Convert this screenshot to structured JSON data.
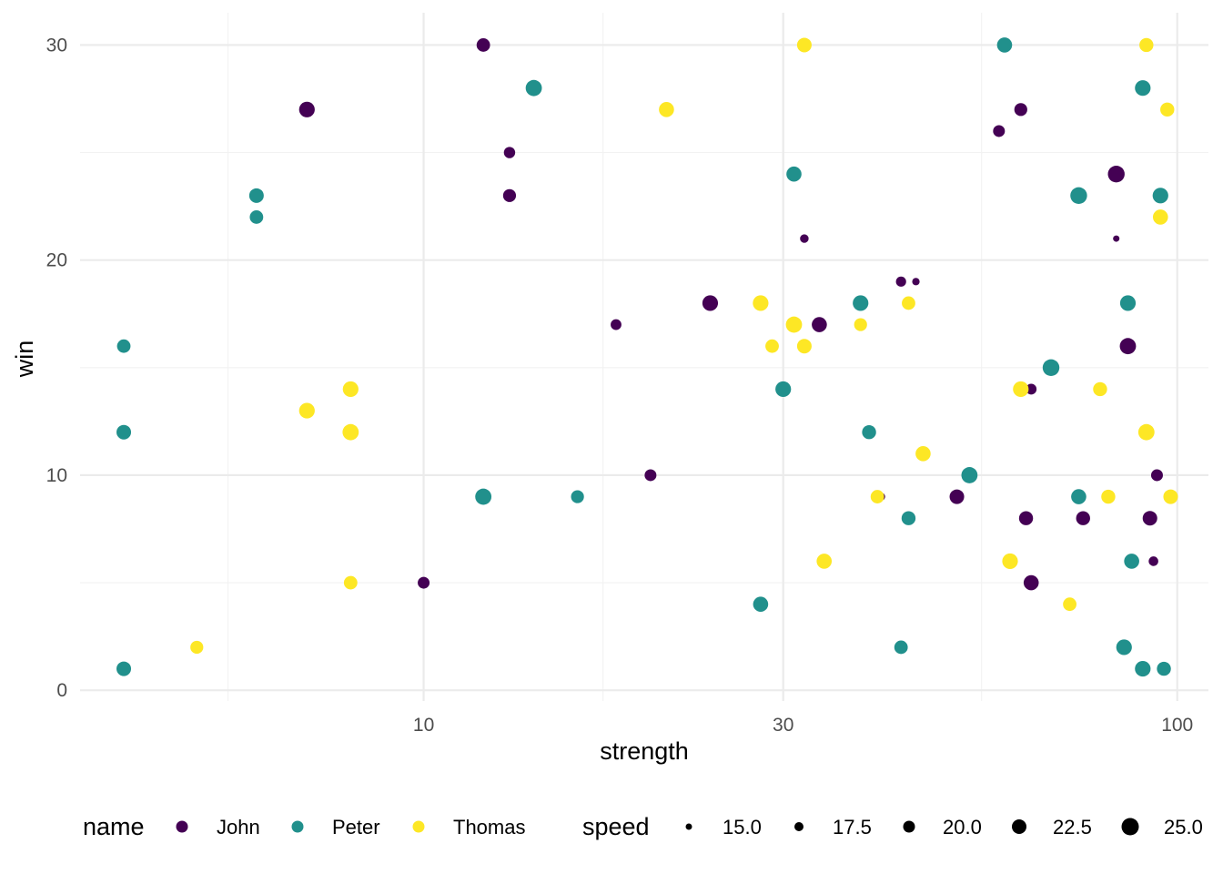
{
  "chart_data": {
    "type": "scatter",
    "xlabel": "strength",
    "ylabel": "win",
    "x_scale": "log10",
    "x_ticks": [
      10,
      30,
      100
    ],
    "x_tick_labels": [
      "10",
      "30",
      "100"
    ],
    "x_minor_ticks": [
      5.5,
      17.3,
      55
    ],
    "xlim": [
      3.5,
      110
    ],
    "y_ticks": [
      0,
      10,
      20,
      30
    ],
    "y_tick_labels": [
      "0",
      "10",
      "20",
      "30"
    ],
    "y_minor_ticks": [
      5,
      15,
      25
    ],
    "ylim": [
      -0.5,
      31.5
    ],
    "grid": true,
    "legend_position": "bottom",
    "colors": {
      "John": "#440154",
      "Peter": "#21908C",
      "Thomas": "#FDE725"
    },
    "color_legend": {
      "title": "name",
      "entries": [
        "John",
        "Peter",
        "Thomas"
      ]
    },
    "size_legend": {
      "title": "speed",
      "values": [
        15.0,
        17.5,
        20.0,
        22.5,
        25.0
      ],
      "labels": [
        "15.0",
        "17.5",
        "20.0",
        "22.5",
        "25.0"
      ]
    },
    "series": [
      {
        "name": "John",
        "points": [
          {
            "x": 12.0,
            "y": 30,
            "speed": 21.5
          },
          {
            "x": 7.0,
            "y": 27,
            "speed": 23.5
          },
          {
            "x": 13.0,
            "y": 25,
            "speed": 19.5
          },
          {
            "x": 13.0,
            "y": 23,
            "speed": 21.0
          },
          {
            "x": 32.0,
            "y": 21,
            "speed": 17.0
          },
          {
            "x": 18.0,
            "y": 17,
            "speed": 19.0
          },
          {
            "x": 24.0,
            "y": 18,
            "speed": 23.5
          },
          {
            "x": 33.5,
            "y": 17,
            "speed": 23.0
          },
          {
            "x": 20.0,
            "y": 10,
            "speed": 20.0
          },
          {
            "x": 10.0,
            "y": 5,
            "speed": 20.0
          },
          {
            "x": 43.0,
            "y": 19,
            "speed": 18.5
          },
          {
            "x": 45.0,
            "y": 19,
            "speed": 16.0
          },
          {
            "x": 40.5,
            "y": 9,
            "speed": 16.0
          },
          {
            "x": 51.0,
            "y": 9,
            "speed": 22.5
          },
          {
            "x": 58.0,
            "y": 26,
            "speed": 20.0
          },
          {
            "x": 62.0,
            "y": 27,
            "speed": 21.0
          },
          {
            "x": 64.0,
            "y": 14,
            "speed": 19.0
          },
          {
            "x": 63.0,
            "y": 8,
            "speed": 22.0
          },
          {
            "x": 64.0,
            "y": 5,
            "speed": 23.0
          },
          {
            "x": 75.0,
            "y": 8,
            "speed": 22.0
          },
          {
            "x": 83.0,
            "y": 24,
            "speed": 24.5
          },
          {
            "x": 83.0,
            "y": 21,
            "speed": 15.0
          },
          {
            "x": 86.0,
            "y": 16,
            "speed": 24.0
          },
          {
            "x": 94.0,
            "y": 10,
            "speed": 20.0
          },
          {
            "x": 93.0,
            "y": 6,
            "speed": 18.0
          },
          {
            "x": 92.0,
            "y": 8,
            "speed": 22.5
          }
        ]
      },
      {
        "name": "Peter",
        "points": [
          {
            "x": 4.0,
            "y": 16,
            "speed": 21.5
          },
          {
            "x": 4.0,
            "y": 12,
            "speed": 22.5
          },
          {
            "x": 4.0,
            "y": 1,
            "speed": 22.5
          },
          {
            "x": 6.0,
            "y": 23,
            "speed": 22.5
          },
          {
            "x": 6.0,
            "y": 22,
            "speed": 21.5
          },
          {
            "x": 14.0,
            "y": 28,
            "speed": 24.0
          },
          {
            "x": 12.0,
            "y": 9,
            "speed": 24.0
          },
          {
            "x": 16.0,
            "y": 9,
            "speed": 21.0
          },
          {
            "x": 28.0,
            "y": 4,
            "speed": 23.0
          },
          {
            "x": 30.0,
            "y": 14,
            "speed": 23.5
          },
          {
            "x": 31.0,
            "y": 24,
            "speed": 23.0
          },
          {
            "x": 38.0,
            "y": 18,
            "speed": 23.5
          },
          {
            "x": 39.0,
            "y": 12,
            "speed": 22.0
          },
          {
            "x": 44.0,
            "y": 8,
            "speed": 22.0
          },
          {
            "x": 43.0,
            "y": 2,
            "speed": 21.5
          },
          {
            "x": 53.0,
            "y": 10,
            "speed": 24.0
          },
          {
            "x": 59.0,
            "y": 30,
            "speed": 23.0
          },
          {
            "x": 68.0,
            "y": 15,
            "speed": 24.5
          },
          {
            "x": 74.0,
            "y": 23,
            "speed": 24.5
          },
          {
            "x": 74.0,
            "y": 9,
            "speed": 23.0
          },
          {
            "x": 86.0,
            "y": 18,
            "speed": 23.5
          },
          {
            "x": 87.0,
            "y": 6,
            "speed": 23.0
          },
          {
            "x": 85.0,
            "y": 2,
            "speed": 23.5
          },
          {
            "x": 90.0,
            "y": 28,
            "speed": 23.5
          },
          {
            "x": 90.0,
            "y": 1,
            "speed": 23.5
          },
          {
            "x": 95.0,
            "y": 23,
            "speed": 23.5
          },
          {
            "x": 96.0,
            "y": 1,
            "speed": 22.0
          }
        ]
      },
      {
        "name": "Thomas",
        "points": [
          {
            "x": 5.0,
            "y": 2,
            "speed": 21.0
          },
          {
            "x": 7.0,
            "y": 13,
            "speed": 23.5
          },
          {
            "x": 8.0,
            "y": 14,
            "speed": 23.5
          },
          {
            "x": 8.0,
            "y": 12,
            "speed": 24.0
          },
          {
            "x": 8.0,
            "y": 5,
            "speed": 21.5
          },
          {
            "x": 21.0,
            "y": 27,
            "speed": 23.0
          },
          {
            "x": 28.0,
            "y": 18,
            "speed": 23.5
          },
          {
            "x": 29.0,
            "y": 16,
            "speed": 21.5
          },
          {
            "x": 31.0,
            "y": 17,
            "speed": 24.0
          },
          {
            "x": 32.0,
            "y": 30,
            "speed": 22.5
          },
          {
            "x": 32.0,
            "y": 16,
            "speed": 22.5
          },
          {
            "x": 34.0,
            "y": 6,
            "speed": 23.0
          },
          {
            "x": 38.0,
            "y": 17,
            "speed": 21.0
          },
          {
            "x": 40.0,
            "y": 9,
            "speed": 21.5
          },
          {
            "x": 44.0,
            "y": 18,
            "speed": 21.5
          },
          {
            "x": 46.0,
            "y": 11,
            "speed": 23.0
          },
          {
            "x": 60.0,
            "y": 6,
            "speed": 23.5
          },
          {
            "x": 62.0,
            "y": 14,
            "speed": 23.5
          },
          {
            "x": 72.0,
            "y": 4,
            "speed": 21.5
          },
          {
            "x": 79.0,
            "y": 14,
            "speed": 22.0
          },
          {
            "x": 81.0,
            "y": 9,
            "speed": 22.0
          },
          {
            "x": 91.0,
            "y": 30,
            "speed": 22.0
          },
          {
            "x": 91.0,
            "y": 12,
            "speed": 24.0
          },
          {
            "x": 95.0,
            "y": 22,
            "speed": 23.0
          },
          {
            "x": 97.0,
            "y": 27,
            "speed": 22.0
          },
          {
            "x": 98.0,
            "y": 9,
            "speed": 22.5
          }
        ]
      }
    ]
  }
}
